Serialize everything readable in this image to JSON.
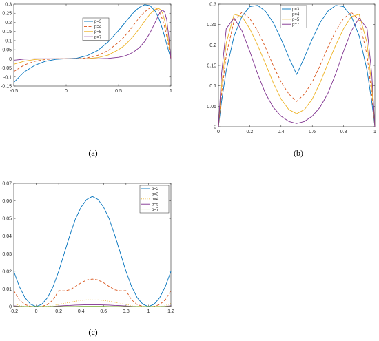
{
  "chart_data": [
    {
      "type": "line",
      "caption": "(a)",
      "xlim": [
        -0.5,
        1
      ],
      "ylim": [
        -0.15,
        0.3
      ],
      "xticks": [
        "-0.5",
        "0",
        "0.5",
        "1"
      ],
      "xtick_values": [
        -0.5,
        0,
        0.5,
        1
      ],
      "yticks": [
        "-0.15",
        "-0.1",
        "-0.05",
        "0",
        "0.05",
        "0.1",
        "0.15",
        "0.2",
        "0.25",
        "0.3"
      ],
      "ytick_values": [
        -0.15,
        -0.1,
        -0.05,
        0,
        0.05,
        0.1,
        0.15,
        0.2,
        0.25,
        0.3
      ],
      "legend_position": "top-center",
      "x": [
        -0.5,
        -0.4,
        -0.3,
        -0.2,
        -0.1,
        0,
        0.1,
        0.2,
        0.3,
        0.4,
        0.5,
        0.55,
        0.6,
        0.65,
        0.7,
        0.75,
        0.8,
        0.85,
        0.88,
        0.9,
        0.92,
        0.94,
        0.96,
        0.98,
        1.0
      ],
      "series": [
        {
          "name": "p=3",
          "color": "#0072BD",
          "dash": "solid",
          "values": [
            -0.13,
            -0.072,
            -0.036,
            -0.014,
            -0.003,
            0,
            0.003,
            0.017,
            0.045,
            0.092,
            0.155,
            0.19,
            0.225,
            0.258,
            0.283,
            0.297,
            0.292,
            0.262,
            0.228,
            0.198,
            0.162,
            0.122,
            0.08,
            0.04,
            0
          ]
        },
        {
          "name": "p=4",
          "color": "#D95319",
          "dash": "dashed",
          "values": [
            -0.07,
            -0.034,
            -0.014,
            -0.004,
            0,
            0,
            0,
            0.005,
            0.018,
            0.045,
            0.09,
            0.118,
            0.152,
            0.19,
            0.227,
            0.258,
            0.279,
            0.28,
            0.265,
            0.245,
            0.215,
            0.175,
            0.125,
            0.065,
            0
          ]
        },
        {
          "name": "p=5",
          "color": "#EDB120",
          "dash": "solid",
          "values": [
            -0.03,
            -0.013,
            -0.004,
            -0.001,
            0,
            0,
            0,
            0.001,
            0.006,
            0.02,
            0.05,
            0.07,
            0.098,
            0.13,
            0.167,
            0.207,
            0.245,
            0.272,
            0.278,
            0.27,
            0.25,
            0.212,
            0.158,
            0.085,
            0
          ]
        },
        {
          "name": "p=7",
          "color": "#7E2F8E",
          "dash": "solid",
          "values": [
            -0.008,
            -0.002,
            0,
            0,
            0,
            0,
            0,
            0,
            0,
            0.002,
            0.008,
            0.014,
            0.024,
            0.04,
            0.062,
            0.095,
            0.142,
            0.2,
            0.237,
            0.258,
            0.267,
            0.258,
            0.215,
            0.122,
            0
          ]
        }
      ]
    },
    {
      "type": "line",
      "caption": "(b)",
      "xlim": [
        0,
        1
      ],
      "ylim": [
        0,
        0.3
      ],
      "xticks": [
        "0",
        "0.2",
        "0.4",
        "0.6",
        "0.8",
        "1"
      ],
      "xtick_values": [
        0,
        0.2,
        0.4,
        0.6,
        0.8,
        1
      ],
      "yticks": [
        "0",
        "0.05",
        "0.1",
        "0.15",
        "0.2",
        "0.25",
        "0.3"
      ],
      "ytick_values": [
        0,
        0.05,
        0.1,
        0.15,
        0.2,
        0.25,
        0.3
      ],
      "legend_position": "top-center",
      "x": [
        0,
        0.02,
        0.05,
        0.1,
        0.15,
        0.2,
        0.25,
        0.3,
        0.35,
        0.4,
        0.45,
        0.5,
        0.55,
        0.6,
        0.65,
        0.7,
        0.75,
        0.8,
        0.85,
        0.9,
        0.95,
        0.98,
        1.0
      ],
      "series": [
        {
          "name": "p=3",
          "color": "#0072BD",
          "dash": "solid",
          "values": [
            0,
            0.062,
            0.138,
            0.222,
            0.27,
            0.294,
            0.297,
            0.283,
            0.255,
            0.215,
            0.17,
            0.128,
            0.17,
            0.215,
            0.255,
            0.283,
            0.297,
            0.294,
            0.27,
            0.222,
            0.138,
            0.062,
            0
          ]
        },
        {
          "name": "p=4",
          "color": "#D95319",
          "dash": "dashed",
          "values": [
            0,
            0.08,
            0.175,
            0.26,
            0.28,
            0.265,
            0.235,
            0.195,
            0.15,
            0.11,
            0.08,
            0.062,
            0.08,
            0.11,
            0.15,
            0.195,
            0.235,
            0.265,
            0.28,
            0.26,
            0.175,
            0.08,
            0
          ]
        },
        {
          "name": "p=5",
          "color": "#EDB120",
          "dash": "solid",
          "values": [
            0,
            0.1,
            0.205,
            0.275,
            0.27,
            0.24,
            0.2,
            0.155,
            0.108,
            0.068,
            0.042,
            0.032,
            0.042,
            0.068,
            0.108,
            0.155,
            0.2,
            0.24,
            0.27,
            0.275,
            0.205,
            0.1,
            0
          ]
        },
        {
          "name": "p=7",
          "color": "#7E2F8E",
          "dash": "solid",
          "values": [
            0,
            0.13,
            0.24,
            0.266,
            0.235,
            0.185,
            0.13,
            0.082,
            0.048,
            0.026,
            0.013,
            0.008,
            0.013,
            0.026,
            0.048,
            0.082,
            0.13,
            0.185,
            0.235,
            0.266,
            0.24,
            0.13,
            0
          ]
        }
      ]
    },
    {
      "type": "line",
      "caption": "(c)",
      "xlim": [
        -0.2,
        1.2
      ],
      "ylim": [
        0,
        0.07
      ],
      "xticks": [
        "-0.2",
        "0",
        "0.2",
        "0.4",
        "0.6",
        "0.8",
        "1",
        "1.2"
      ],
      "xtick_values": [
        -0.2,
        0,
        0.2,
        0.4,
        0.6,
        0.8,
        1,
        1.2
      ],
      "yticks": [
        "0",
        "0.01",
        "0.02",
        "0.03",
        "0.04",
        "0.05",
        "0.06",
        "0.07"
      ],
      "ytick_values": [
        0,
        0.01,
        0.02,
        0.03,
        0.04,
        0.05,
        0.06,
        0.07
      ],
      "legend_position": "top-right",
      "x": [
        -0.2,
        -0.15,
        -0.1,
        -0.05,
        0,
        0.05,
        0.1,
        0.15,
        0.2,
        0.25,
        0.3,
        0.35,
        0.4,
        0.45,
        0.5,
        0.55,
        0.6,
        0.65,
        0.7,
        0.75,
        0.8,
        0.85,
        0.9,
        0.95,
        1.0,
        1.05,
        1.1,
        1.15,
        1.2
      ],
      "series": [
        {
          "name": "p=2",
          "color": "#0072BD",
          "dash": "solid",
          "values": [
            0.02,
            0.0113,
            0.005,
            0.0013,
            0,
            0.0013,
            0.005,
            0.0113,
            0.02,
            0.0303,
            0.0405,
            0.0498,
            0.0565,
            0.0608,
            0.0625,
            0.0608,
            0.0565,
            0.0498,
            0.0405,
            0.0303,
            0.02,
            0.0113,
            0.005,
            0.0013,
            0,
            0.0013,
            0.005,
            0.0113,
            0.02
          ]
        },
        {
          "name": "p=3",
          "color": "#D95319",
          "dash": "dashed",
          "values": [
            0.009,
            0.0038,
            0.0011,
            0.0001,
            0,
            0.0001,
            0.0011,
            0.0038,
            0.009,
            0.0089,
            0.0095,
            0.0114,
            0.0135,
            0.0151,
            0.0156,
            0.0151,
            0.0135,
            0.0114,
            0.0095,
            0.0089,
            0.009,
            0.0038,
            0.0011,
            0.0001,
            0,
            0.0001,
            0.0011,
            0.0038,
            0.009
          ]
        },
        {
          "name": "p=4",
          "color": "#EDB120",
          "dash": "dotted",
          "values": [
            0.0018,
            0.0005,
            0.0001,
            0,
            0,
            0,
            0.0001,
            0.0005,
            0.0012,
            0.0018,
            0.0024,
            0.003,
            0.0035,
            0.0038,
            0.0039,
            0.0038,
            0.0035,
            0.003,
            0.0024,
            0.0018,
            0.0012,
            0.0005,
            0.0001,
            0,
            0,
            0,
            0.0001,
            0.0005,
            0.0018
          ]
        },
        {
          "name": "p=5",
          "color": "#7E2F8E",
          "dash": "solid",
          "values": [
            0.0004,
            0.0001,
            0,
            0,
            0,
            0,
            0,
            0.0001,
            0.0003,
            0.0005,
            0.0006,
            0.0008,
            0.0009,
            0.001,
            0.001,
            0.001,
            0.0009,
            0.0008,
            0.0006,
            0.0005,
            0.0003,
            0.0001,
            0,
            0,
            0,
            0,
            0,
            0.0001,
            0.0004
          ]
        },
        {
          "name": "p=7",
          "color": "#77AC30",
          "dash": "solid",
          "values": [
            0,
            0,
            0,
            0,
            0,
            0,
            0,
            0,
            0,
            0,
            0,
            0,
            0.0001,
            0.0001,
            0.0001,
            0.0001,
            0.0001,
            0,
            0,
            0,
            0,
            0,
            0,
            0,
            0,
            0,
            0,
            0,
            0
          ]
        }
      ]
    }
  ]
}
